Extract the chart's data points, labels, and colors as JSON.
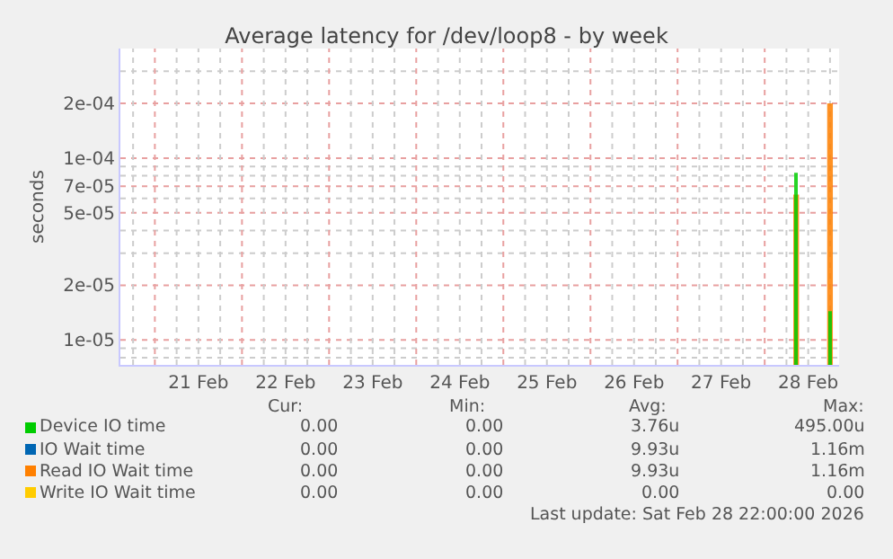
{
  "chart_data": {
    "type": "bar",
    "title": "Average latency for /dev/loop8 - by week",
    "ylabel": "seconds",
    "log": "y",
    "grid": true,
    "legend": "bottom left",
    "xlim": [
      "2026-02-20T14:30",
      "2026-02-28T20:30"
    ],
    "xticks": [
      {
        "value": "2026-02-21T12:00",
        "label": "21 Feb"
      },
      {
        "value": "2026-02-22T12:00",
        "label": "22 Feb"
      },
      {
        "value": "2026-02-23T12:00",
        "label": "23 Feb"
      },
      {
        "value": "2026-02-24T12:00",
        "label": "24 Feb"
      },
      {
        "value": "2026-02-25T12:00",
        "label": "25 Feb"
      },
      {
        "value": "2026-02-26T12:00",
        "label": "26 Feb"
      },
      {
        "value": "2026-02-27T12:00",
        "label": "27 Feb"
      },
      {
        "value": "2026-02-28T12:00",
        "label": "28 Feb"
      }
    ],
    "ylim": [
      7.3e-06,
      0.0004
    ],
    "yticks": [
      {
        "value": 8e-06,
        "label": null
      },
      {
        "value": 9e-06,
        "label": null
      },
      {
        "value": 1e-05,
        "label": "1e-05"
      },
      {
        "value": 2e-05,
        "label": "2e-05"
      },
      {
        "value": 3e-05,
        "label": null
      },
      {
        "value": 4e-05,
        "label": null
      },
      {
        "value": 5e-05,
        "label": "5e-05"
      },
      {
        "value": 6e-05,
        "label": null
      },
      {
        "value": 7e-05,
        "label": "7e-05"
      },
      {
        "value": 8e-05,
        "label": null
      },
      {
        "value": 9e-05,
        "label": null
      },
      {
        "value": 0.0001,
        "label": "1e-04"
      },
      {
        "value": 0.0002,
        "label": "2e-04"
      },
      {
        "value": 0.0003,
        "label": null
      }
    ],
    "x": [
      "2026-02-28T08:40",
      "2026-02-28T18:00"
    ],
    "series": [
      {
        "name": "Device IO time",
        "color": "#00cc00",
        "values": [
          8.3e-05,
          1.44e-05
        ]
      },
      {
        "name": "IO Wait time",
        "color": "#0066b3",
        "values": [
          null,
          null
        ]
      },
      {
        "name": "Read IO Wait time",
        "color": "#ff8000",
        "values": [
          6.3e-05,
          0.0002
        ]
      },
      {
        "name": "Write IO Wait time",
        "color": "#ffcc00",
        "values": [
          null,
          null
        ]
      }
    ],
    "annotations": [
      "Cur:",
      "Min:",
      "Avg:",
      "Max:",
      "0.00",
      "0.00",
      "3.76u",
      "495.00u",
      "0.00",
      "0.00",
      "9.93u",
      "1.16m",
      "0.00",
      "0.00",
      "9.93u",
      "1.16m",
      "0.00",
      "0.00",
      "0.00",
      "0.00",
      "Last update: Sat Feb 28 22:00:00 2026"
    ]
  }
}
